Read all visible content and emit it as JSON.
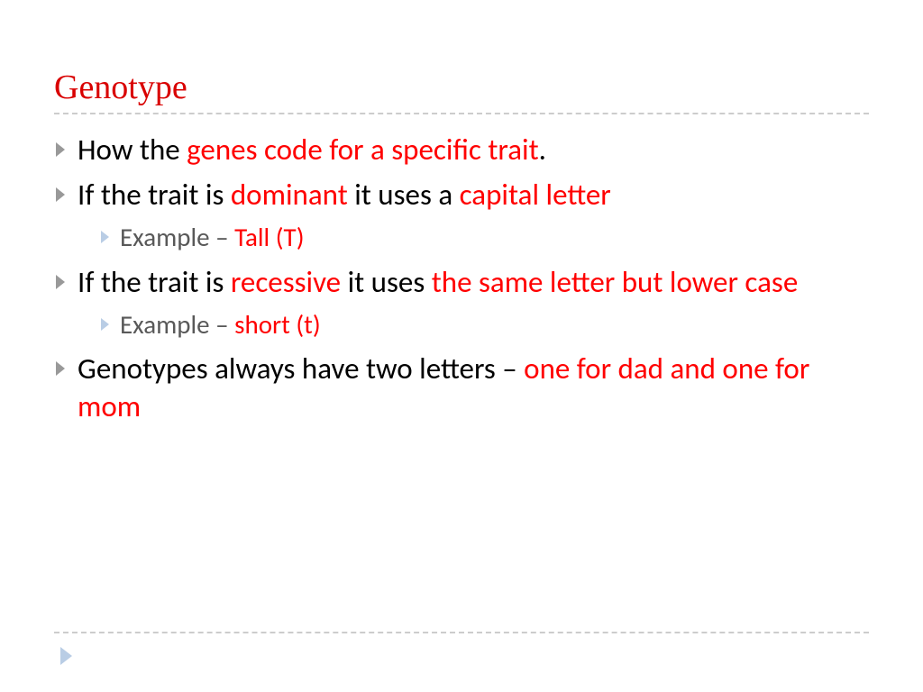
{
  "colors": {
    "title_color": "#d90000",
    "highlight_color": "#ff0000",
    "body_text_color": "#000000",
    "sub_text_color": "#595959",
    "bullet_l1_color": "#999999",
    "bullet_l2_color": "#b9cde5",
    "divider_color": "#cccccc",
    "background": "#ffffff"
  },
  "typography": {
    "title_font": "Georgia",
    "body_font": "Gill Sans",
    "title_size_pt": 28,
    "body_l1_size_pt": 25,
    "body_l2_size_pt": 22
  },
  "title": "Genotype",
  "bullets": [
    {
      "level": 1,
      "segments": [
        {
          "text": "How the ",
          "red": false
        },
        {
          "text": "genes code for a specific trait",
          "red": true
        },
        {
          "text": ".",
          "red": false
        }
      ]
    },
    {
      "level": 1,
      "segments": [
        {
          "text": "If the trait is ",
          "red": false
        },
        {
          "text": "dominant",
          "red": true
        },
        {
          "text": " it uses a ",
          "red": false
        },
        {
          "text": "capital letter",
          "red": true
        }
      ]
    },
    {
      "level": 2,
      "segments": [
        {
          "text": "Example – ",
          "red": false
        },
        {
          "text": "Tall (T)",
          "red": true
        }
      ]
    },
    {
      "level": 1,
      "segments": [
        {
          "text": "If the trait is ",
          "red": false
        },
        {
          "text": "recessive",
          "red": true
        },
        {
          "text": " it uses ",
          "red": false
        },
        {
          "text": "the same letter but lower case",
          "red": true
        }
      ]
    },
    {
      "level": 2,
      "segments": [
        {
          "text": "Example – ",
          "red": false
        },
        {
          "text": "short (t)",
          "red": true
        }
      ]
    },
    {
      "level": 1,
      "segments": [
        {
          "text": "Genotypes always have two letters – ",
          "red": false
        },
        {
          "text": "one for dad and one for mom",
          "red": true
        }
      ]
    }
  ]
}
